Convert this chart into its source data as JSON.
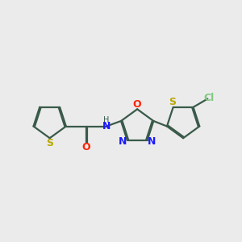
{
  "bg_color": "#ebebeb",
  "bond_color": "#3a5a4a",
  "S_color": "#b8a800",
  "N_color": "#1a1aff",
  "O_color": "#ff2200",
  "Cl_color": "#7fc97f",
  "line_width": 1.6,
  "dbo": 0.055,
  "figsize": [
    3.0,
    3.0
  ],
  "dpi": 100,
  "xlim": [
    0,
    10
  ],
  "ylim": [
    2,
    8
  ]
}
